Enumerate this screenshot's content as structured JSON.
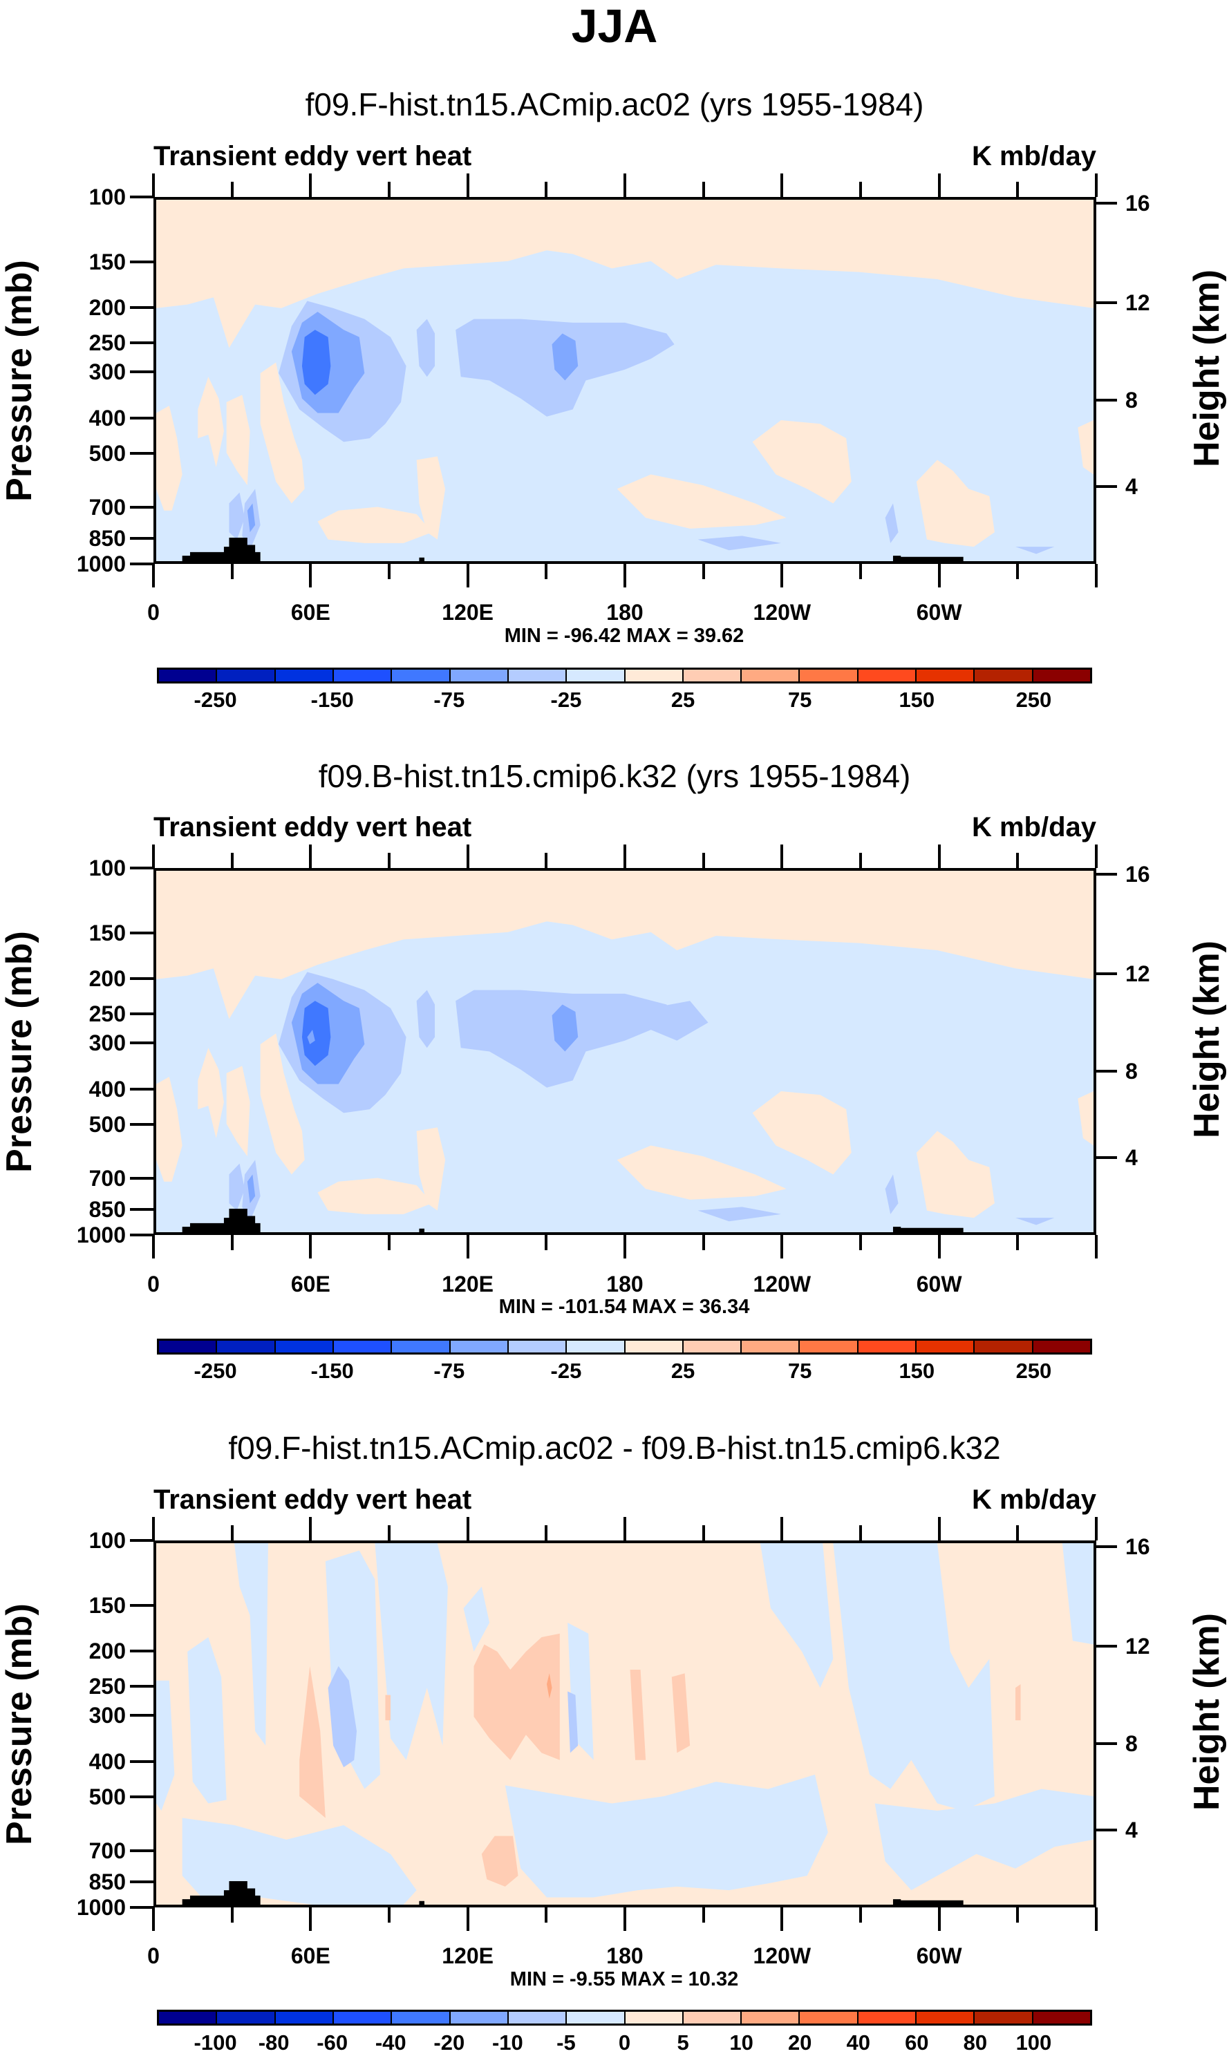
{
  "title": "JJA",
  "colors": [
    "#000090",
    "#0020c0",
    "#0032e0",
    "#1e50ff",
    "#4078ff",
    "#80a8ff",
    "#b4ccff",
    "#d6e9ff",
    "#ffead8",
    "#ffcdb4",
    "#ffaa82",
    "#ff7845",
    "#ff4a1e",
    "#e63200",
    "#b42200",
    "#8b0000"
  ],
  "axes": {
    "pressure_ticks": [
      "100",
      "150",
      "200",
      "250",
      "300",
      "400",
      "500",
      "700",
      "850",
      "1000"
    ],
    "pressure_values": [
      100,
      150,
      200,
      250,
      300,
      400,
      500,
      700,
      850,
      1000
    ],
    "height_ticks": [
      "16",
      "12",
      "8",
      "4"
    ],
    "lon_ticks": [
      "0",
      "60E",
      "120E",
      "180",
      "120W",
      "60W"
    ],
    "lon_values": [
      0,
      60,
      120,
      180,
      240,
      300
    ],
    "ylabel_left": "Pressure (mb)",
    "ylabel_right": "Height (km)"
  },
  "chart_data": [
    {
      "type": "heatmap",
      "title": "f09.F-hist.tn15.ACmip.ac02 (yrs 1955-1984)",
      "left_label": "Transient eddy vert heat",
      "units": "K mb/day",
      "minmax": "MIN = -96.42  MAX =  39.62",
      "xlim": [
        0,
        360
      ],
      "ylim_mb": [
        1000,
        100
      ],
      "levels": [
        -250,
        -200,
        -150,
        -100,
        -75,
        -50,
        -25,
        0,
        25,
        50,
        75,
        100,
        150,
        200,
        250
      ],
      "colorbar_labels": [
        "-250",
        "-150",
        "-75",
        "-25",
        "25",
        "75",
        "150",
        "250"
      ]
    },
    {
      "type": "heatmap",
      "title": "f09.B-hist.tn15.cmip6.k32 (yrs 1955-1984)",
      "left_label": "Transient eddy vert heat",
      "units": "K mb/day",
      "minmax": "MIN = -101.54  MAX =  36.34",
      "xlim": [
        0,
        360
      ],
      "ylim_mb": [
        1000,
        100
      ],
      "levels": [
        -250,
        -200,
        -150,
        -100,
        -75,
        -50,
        -25,
        0,
        25,
        50,
        75,
        100,
        150,
        200,
        250
      ],
      "colorbar_labels": [
        "-250",
        "-150",
        "-75",
        "-25",
        "25",
        "75",
        "150",
        "250"
      ]
    },
    {
      "type": "heatmap",
      "title": "f09.F-hist.tn15.ACmip.ac02 - f09.B-hist.tn15.cmip6.k32",
      "left_label": "Transient eddy vert heat",
      "units": "K mb/day",
      "minmax": "MIN =  -9.55  MAX =  10.32",
      "xlim": [
        0,
        360
      ],
      "ylim_mb": [
        1000,
        100
      ],
      "levels": [
        -100,
        -80,
        -60,
        -40,
        -20,
        -10,
        -5,
        0,
        5,
        10,
        20,
        40,
        60,
        80,
        100
      ],
      "colorbar_labels": [
        "-100",
        "-80",
        "-60",
        "-40",
        "-20",
        "-10",
        "-5",
        "0",
        "5",
        "10",
        "20",
        "40",
        "60",
        "80",
        "100"
      ]
    }
  ]
}
